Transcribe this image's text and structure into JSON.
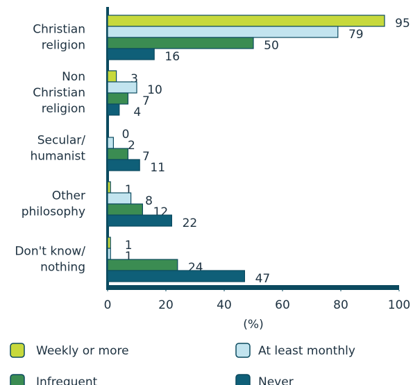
{
  "chart_data": {
    "type": "hbar",
    "categories": [
      "Christian\nreligion",
      "Non\nChristian\nreligion",
      "Secular/\nhumanist",
      "Other\nphilosophy",
      "Don't know/\nnothing"
    ],
    "series": [
      {
        "name": "Weekly or more",
        "color": "#c7d93c",
        "values": [
          95,
          3,
          0,
          1,
          1
        ]
      },
      {
        "name": "At least monthly",
        "color": "#c2e4ef",
        "values": [
          79,
          10,
          2,
          8,
          1
        ]
      },
      {
        "name": "Infrequent",
        "color": "#3b8c52",
        "values": [
          50,
          7,
          7,
          12,
          24
        ]
      },
      {
        "name": "Never",
        "color": "#0f5f78",
        "values": [
          16,
          4,
          11,
          22,
          47
        ]
      }
    ],
    "xlabel": "(%)",
    "xlim": [
      0,
      100
    ],
    "xticks": [
      0,
      20,
      40,
      60,
      80,
      100
    ],
    "grid": false,
    "legend": "bottom"
  }
}
